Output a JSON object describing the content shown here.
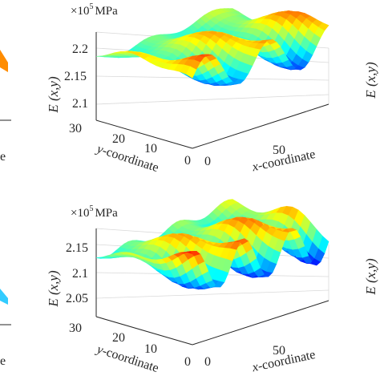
{
  "chart_data": [
    {
      "type": "surface",
      "scale_label": {
        "base": "×10",
        "exponent": "5",
        "unit": "MPa"
      },
      "zlabel": "E (x,y)",
      "xlabel": "x-coordinate",
      "ylabel": "y-coordinate",
      "z_ticks": [
        "2.2",
        "2.15",
        "2.1"
      ],
      "y_ticks": [
        "30",
        "20",
        "10",
        "0"
      ],
      "x_ticks": [
        "0",
        "50"
      ],
      "zlim": [
        2.08,
        2.24
      ],
      "surface": {
        "nx": 34,
        "ny": 16,
        "base": 2.16,
        "amp": 0.04,
        "waves": 2.2,
        "phase": 0.0,
        "colormap": "jet"
      }
    },
    {
      "type": "surface",
      "scale_label": {
        "base": "×10",
        "exponent": "5",
        "unit": "MPa"
      },
      "zlabel": "E (x,y)",
      "xlabel": "x-coordinate",
      "ylabel": "y-coordinate",
      "z_ticks": [
        "2.15",
        "2.1",
        "2.05"
      ],
      "y_ticks": [
        "30",
        "20",
        "10",
        "0"
      ],
      "x_ticks": [
        "0",
        "50"
      ],
      "zlim": [
        2.03,
        2.17
      ],
      "surface": {
        "nx": 34,
        "ny": 16,
        "base": 2.1,
        "amp": 0.04,
        "waves": 2.8,
        "phase": 1.2,
        "colormap": "jet"
      }
    }
  ],
  "edge_fragments": {
    "left_top": "e",
    "left_bottom": "e",
    "right_top": "E (x,y)",
    "right_bottom": "E (x,y)"
  }
}
